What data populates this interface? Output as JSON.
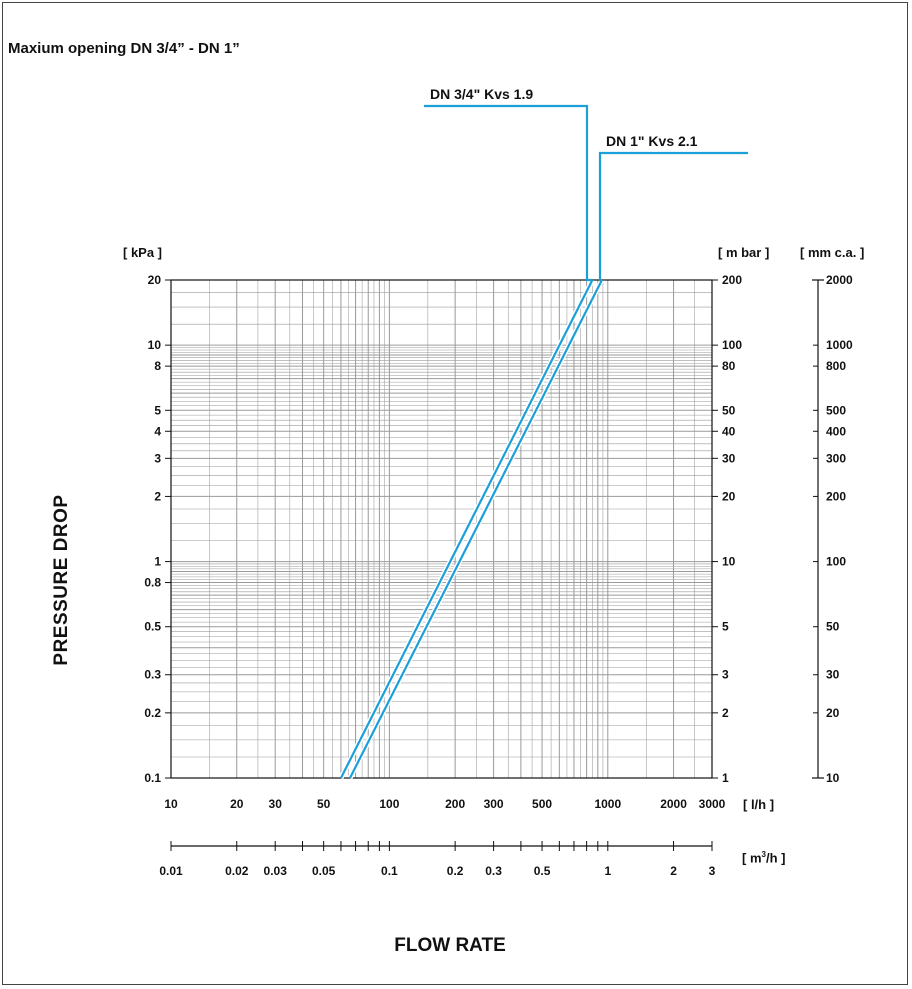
{
  "title": "Maxium opening  DN 3/4” - DN 1”",
  "colors": {
    "series": "#1b9fd9",
    "grid": "#9a9a9a",
    "axis": "#111111"
  },
  "chart_data": {
    "type": "line",
    "title": "Maxium opening  DN 3/4” - DN 1”",
    "xlabel": "FLOW RATE",
    "ylabel": "PRESSURE DROP",
    "x_scale": "log",
    "y_scale": "log",
    "grid": true,
    "xlim": [
      10,
      3000
    ],
    "ylim": [
      0.1,
      20
    ],
    "units": {
      "y_left": "[ kPa ]",
      "y_mbar": "[ m bar ]",
      "y_mmca": "[ mm c.a. ]",
      "x_lh": "[ l/h ]",
      "x_m3h_prefix": "[ m",
      "x_m3h_sup": "3",
      "x_m3h_suffix": "/h ]"
    },
    "y_ticks_kpa": [
      "20",
      "10",
      "8",
      "5",
      "4",
      "3",
      "2",
      "1",
      "0.8",
      "0.5",
      "0.3",
      "0.2",
      "0.1"
    ],
    "y_ticks_kpa_values": [
      20,
      10,
      8,
      5,
      4,
      3,
      2,
      1,
      0.8,
      0.5,
      0.3,
      0.2,
      0.1
    ],
    "y_ticks_mbar": [
      "200",
      "100",
      "80",
      "50",
      "40",
      "30",
      "20",
      "10",
      "5",
      "3",
      "2",
      "1"
    ],
    "y_ticks_mbar_values": [
      20,
      10,
      8,
      5,
      4,
      3,
      2,
      1,
      0.5,
      0.3,
      0.2,
      0.1
    ],
    "y_ticks_mmca": [
      "2000",
      "1000",
      "800",
      "500",
      "400",
      "300",
      "200",
      "100",
      "50",
      "30",
      "20",
      "10"
    ],
    "y_ticks_mmca_values": [
      20,
      10,
      8,
      5,
      4,
      3,
      2,
      1,
      0.5,
      0.3,
      0.2,
      0.1
    ],
    "x_ticks_lh": [
      "10",
      "20",
      "30",
      "50",
      "100",
      "200",
      "300",
      "500",
      "1000",
      "2000",
      "3000"
    ],
    "x_ticks_lh_values": [
      10,
      20,
      30,
      50,
      100,
      200,
      300,
      500,
      1000,
      2000,
      3000
    ],
    "x_ticks_m3h": [
      "0.01",
      "0.02",
      "0.03",
      "0.05",
      "0.1",
      "0.2",
      "0.3",
      "0.5",
      "1",
      "2",
      "3"
    ],
    "x_ticks_m3h_values": [
      10,
      20,
      30,
      50,
      100,
      200,
      300,
      500,
      1000,
      2000,
      3000
    ],
    "series": [
      {
        "name": "DN 3/4\" Kvs 1.9",
        "x": [
          60,
          850
        ],
        "y": [
          0.1,
          20
        ]
      },
      {
        "name": "DN 1\" Kvs 2.1",
        "x": [
          66,
          940
        ],
        "y": [
          0.1,
          20
        ]
      }
    ]
  }
}
